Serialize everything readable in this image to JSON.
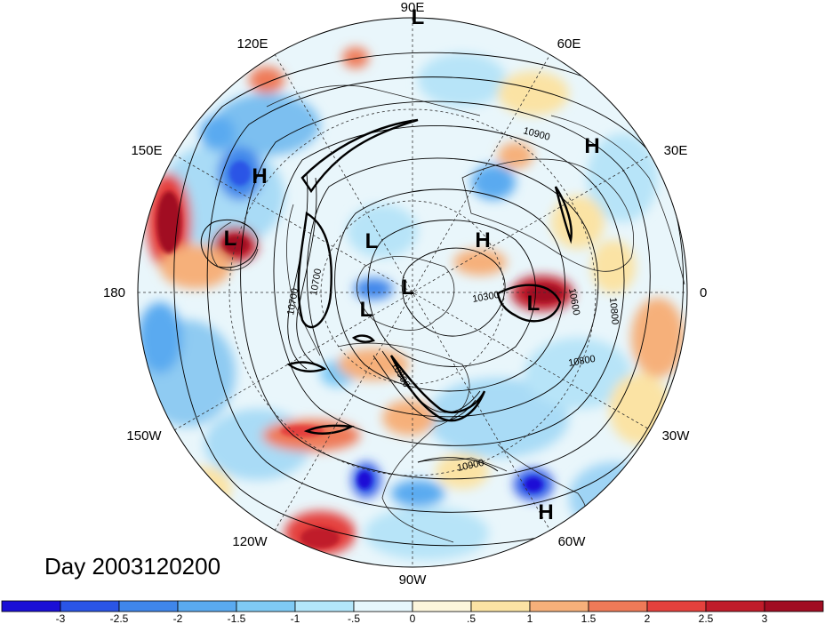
{
  "title": "Day 2003120200",
  "longitude_labels": [
    "90E",
    "60E",
    "30E",
    "0",
    "30W",
    "60W",
    "90W",
    "120W",
    "150W",
    "180",
    "150E",
    "120E"
  ],
  "contour_labels": [
    "10900",
    "10600",
    "10800",
    "10800",
    "10300",
    "10700",
    "10700",
    "10900",
    "10900"
  ],
  "pressure_centers": [
    {
      "type": "H",
      "label": "H"
    },
    {
      "type": "H",
      "label": "H"
    },
    {
      "type": "H",
      "label": "H"
    },
    {
      "type": "H",
      "label": "H"
    },
    {
      "type": "L",
      "label": "L"
    },
    {
      "type": "L",
      "label": "L"
    },
    {
      "type": "L",
      "label": "L"
    },
    {
      "type": "L",
      "label": "L"
    },
    {
      "type": "L",
      "label": "L"
    },
    {
      "type": "L",
      "label": "L"
    }
  ],
  "colorbar": {
    "ticks": [
      "-3",
      "-2.5",
      "-2",
      "-1.5",
      "-1",
      "-.5",
      "0",
      ".5",
      "1",
      "1.5",
      "2",
      "2.5",
      "3"
    ],
    "colors": [
      "#1a0fd6",
      "#2a55e6",
      "#3f86ea",
      "#5aaaf0",
      "#7fcaf5",
      "#b3e6fa",
      "#e6f7fd",
      "#fdf6dc",
      "#fbe3a4",
      "#f6b07a",
      "#ef7a58",
      "#e4413d",
      "#c01c2a",
      "#a10d22"
    ]
  }
}
